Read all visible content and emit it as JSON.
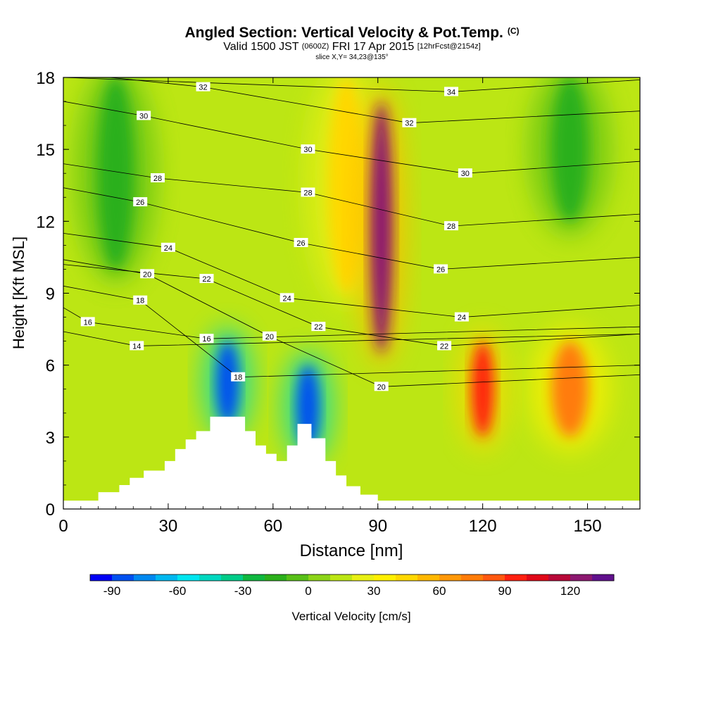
{
  "header": {
    "title": "Angled Section: Vertical Velocity & Pot.Temp.",
    "title_mark": "(C)",
    "valid_prefix": "Valid 1500 JST",
    "valid_utc": "(0600Z)",
    "valid_date": "FRI 17 Apr 2015",
    "forecast": "[12hrFcst@2154z]",
    "slice": "slice X,Y= 34,23@135°"
  },
  "chart_data": {
    "type": "heatmap",
    "xlabel": "Distance [nm]",
    "ylabel": "Height [Kft MSL]",
    "xlim": [
      0,
      165
    ],
    "ylim": [
      0,
      18
    ],
    "x_ticks": [
      "0",
      "30",
      "60",
      "90",
      "120",
      "150"
    ],
    "y_ticks": [
      "0",
      "3",
      "6",
      "9",
      "12",
      "15",
      "18"
    ],
    "x_tick_values": [
      0,
      30,
      60,
      90,
      120,
      150
    ],
    "y_tick_values": [
      0,
      3,
      6,
      9,
      12,
      15,
      18
    ],
    "terrain_kft": [
      [
        0,
        0.35
      ],
      [
        10,
        0.35
      ],
      [
        10,
        0.7
      ],
      [
        16,
        0.7
      ],
      [
        16,
        1.0
      ],
      [
        19,
        1.0
      ],
      [
        19,
        1.3
      ],
      [
        23,
        1.3
      ],
      [
        23,
        1.6
      ],
      [
        29,
        1.6
      ],
      [
        29,
        2.0
      ],
      [
        32,
        2.0
      ],
      [
        32,
        2.5
      ],
      [
        35,
        2.5
      ],
      [
        35,
        2.9
      ],
      [
        38,
        2.9
      ],
      [
        38,
        3.25
      ],
      [
        42,
        3.25
      ],
      [
        42,
        3.85
      ],
      [
        52,
        3.85
      ],
      [
        52,
        3.25
      ],
      [
        55,
        3.25
      ],
      [
        55,
        2.65
      ],
      [
        58,
        2.65
      ],
      [
        58,
        2.3
      ],
      [
        61,
        2.3
      ],
      [
        61,
        2.0
      ],
      [
        64,
        2.0
      ],
      [
        64,
        2.65
      ],
      [
        67,
        2.65
      ],
      [
        67,
        3.55
      ],
      [
        71,
        3.55
      ],
      [
        71,
        2.95
      ],
      [
        75,
        2.95
      ],
      [
        75,
        2.0
      ],
      [
        78,
        2.0
      ],
      [
        78,
        1.4
      ],
      [
        81,
        1.4
      ],
      [
        81,
        0.95
      ],
      [
        85,
        0.95
      ],
      [
        85,
        0.6
      ],
      [
        90,
        0.6
      ],
      [
        90,
        0.35
      ],
      [
        165,
        0.35
      ]
    ],
    "vertical_velocity_cm_s": [
      {
        "x": 15,
        "y_bottom": 10,
        "y_top": 18,
        "w": -20
      },
      {
        "x": 47,
        "y_bottom": 3.5,
        "y_top": 7,
        "w": -90
      },
      {
        "x": 70,
        "y_bottom": 2.5,
        "y_top": 6,
        "w": -90
      },
      {
        "x": 81,
        "y_bottom": 9,
        "y_top": 18,
        "w": 45
      },
      {
        "x": 91,
        "y_bottom": 6.5,
        "y_top": 17,
        "w": 120
      },
      {
        "x": 120,
        "y_bottom": 3,
        "y_top": 7,
        "w": 90
      },
      {
        "x": 145,
        "y_bottom": 3,
        "y_top": 7,
        "w": 70
      },
      {
        "x": 145,
        "y_bottom": 12,
        "y_top": 18,
        "w": -20
      }
    ],
    "isentrope_labels": [
      {
        "text": "32",
        "x": 40,
        "y": 17.6
      },
      {
        "text": "34",
        "x": 111,
        "y": 17.4
      },
      {
        "text": "30",
        "x": 23,
        "y": 16.4
      },
      {
        "text": "32",
        "x": 99,
        "y": 16.1
      },
      {
        "text": "30",
        "x": 70,
        "y": 15.0
      },
      {
        "text": "30",
        "x": 115,
        "y": 14.0
      },
      {
        "text": "28",
        "x": 27,
        "y": 13.8
      },
      {
        "text": "28",
        "x": 70,
        "y": 13.2
      },
      {
        "text": "26",
        "x": 22,
        "y": 12.8
      },
      {
        "text": "28",
        "x": 111,
        "y": 11.8
      },
      {
        "text": "26",
        "x": 68,
        "y": 11.1
      },
      {
        "text": "24",
        "x": 30,
        "y": 10.9
      },
      {
        "text": "26",
        "x": 108,
        "y": 10.0
      },
      {
        "text": "20",
        "x": 24,
        "y": 9.8
      },
      {
        "text": "22",
        "x": 41,
        "y": 9.6
      },
      {
        "text": "24",
        "x": 64,
        "y": 8.8
      },
      {
        "text": "18",
        "x": 22,
        "y": 8.7
      },
      {
        "text": "24",
        "x": 114,
        "y": 8.0
      },
      {
        "text": "16",
        "x": 7,
        "y": 7.8
      },
      {
        "text": "22",
        "x": 73,
        "y": 7.6
      },
      {
        "text": "20",
        "x": 59,
        "y": 7.2
      },
      {
        "text": "16",
        "x": 41,
        "y": 7.1
      },
      {
        "text": "22",
        "x": 109,
        "y": 6.8
      },
      {
        "text": "14",
        "x": 21,
        "y": 6.8
      },
      {
        "text": "18",
        "x": 50,
        "y": 5.5
      },
      {
        "text": "20",
        "x": 91,
        "y": 5.1
      }
    ],
    "colorbar": {
      "label": "Vertical Velocity [cm/s]",
      "ticks": [
        "-90",
        "-60",
        "-30",
        "0",
        "30",
        "60",
        "90",
        "120"
      ],
      "min": -100,
      "max": 140,
      "step": 10,
      "colors": [
        "#0000f5",
        "#0050f0",
        "#0088f0",
        "#00b8f0",
        "#00e6f0",
        "#00d8c0",
        "#00cc88",
        "#10b840",
        "#2cb01c",
        "#58c018",
        "#8cd418",
        "#bce614",
        "#e8f014",
        "#fff000",
        "#ffd800",
        "#ffb800",
        "#ff9808",
        "#ff7c08",
        "#ff5810",
        "#ff2010",
        "#e00818",
        "#b80838",
        "#8c1870",
        "#60108c"
      ]
    }
  }
}
